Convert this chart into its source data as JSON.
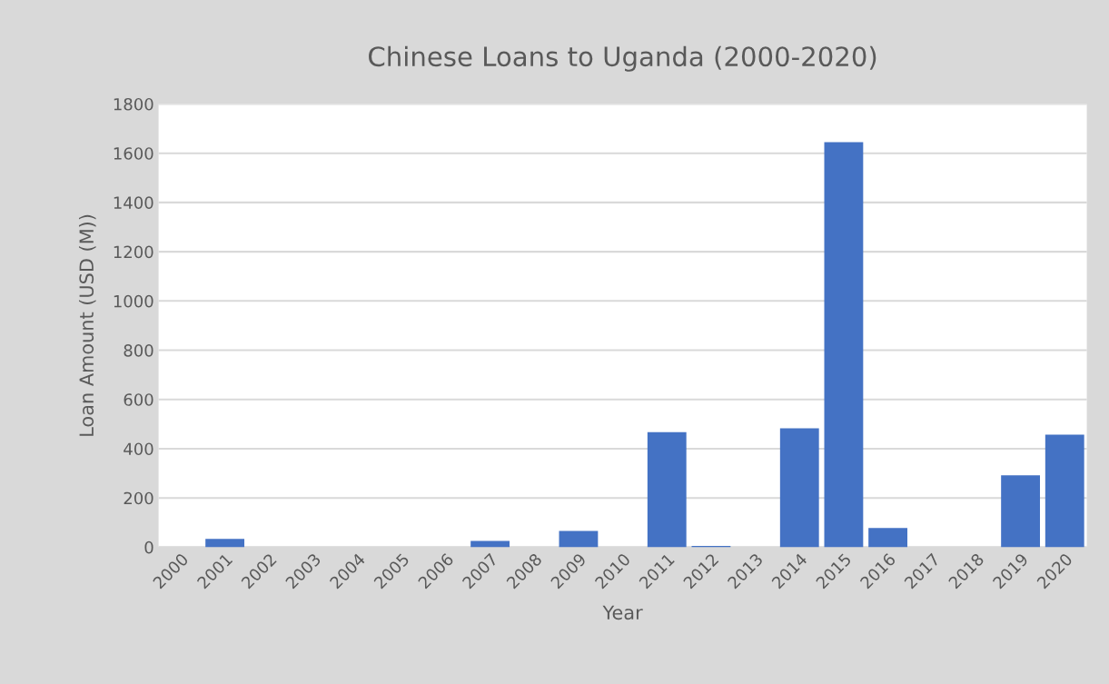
{
  "chart_data": {
    "type": "bar",
    "title": "Chinese Loans to Uganda (2000-2020)",
    "xlabel": "Year",
    "ylabel": "Loan Amount (USD (M))",
    "categories": [
      "2000",
      "2001",
      "2002",
      "2003",
      "2004",
      "2005",
      "2006",
      "2007",
      "2008",
      "2009",
      "2010",
      "2011",
      "2012",
      "2013",
      "2014",
      "2015",
      "2016",
      "2017",
      "2018",
      "2019",
      "2020"
    ],
    "values": [
      0,
      34,
      0,
      0,
      0,
      0,
      0,
      25,
      0,
      66,
      0,
      467,
      5,
      0,
      483,
      1645,
      78,
      0,
      0,
      292,
      457
    ],
    "color": "#4472c4",
    "ylim": [
      0,
      1800
    ],
    "yticks": [
      0,
      200,
      400,
      600,
      800,
      1000,
      1200,
      1400,
      1600,
      1800
    ],
    "grid": "y",
    "legend": false
  }
}
